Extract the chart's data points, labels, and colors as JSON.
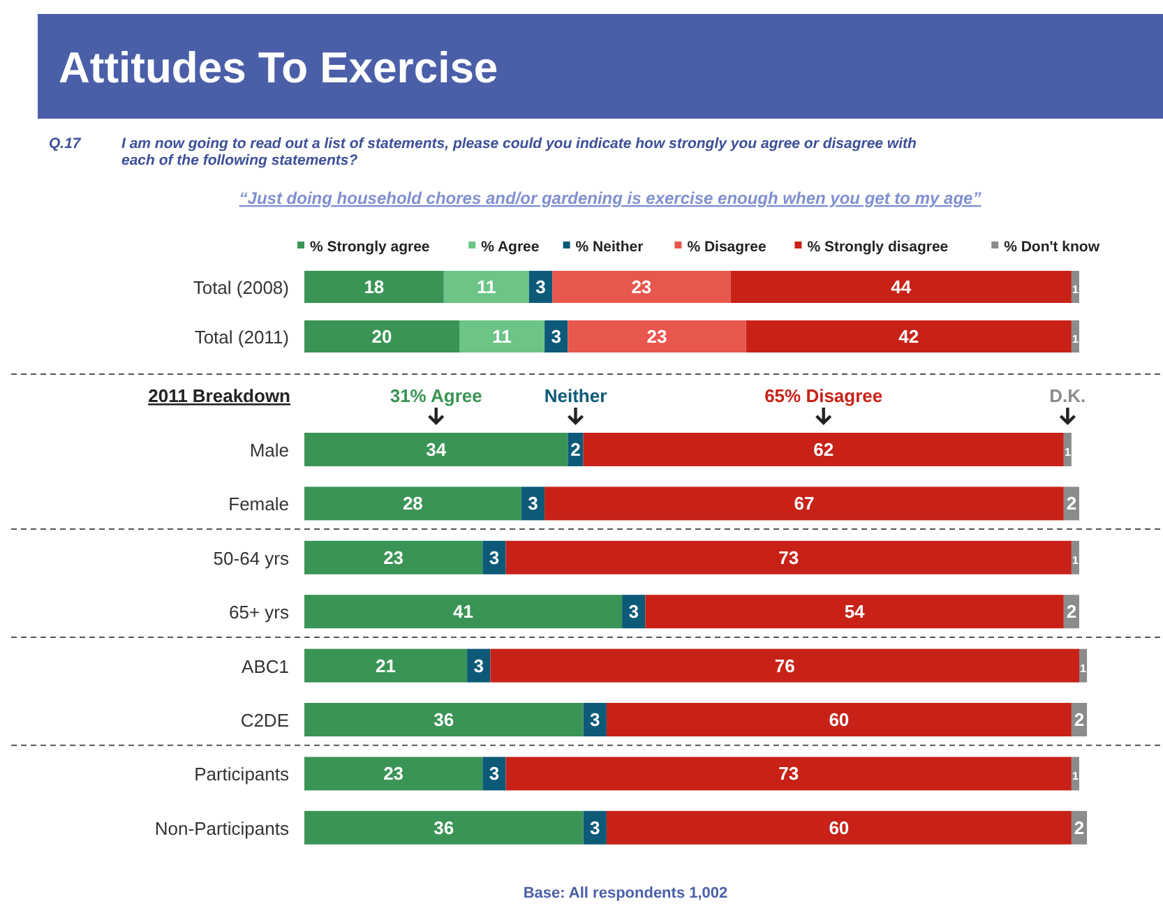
{
  "chart_data": [
    {
      "type": "bar",
      "orientation": "horizontal",
      "stacked": true,
      "title": "Attitudes To Exercise",
      "subtitle": "I am now going to read out a list of statements, please could you indicate how strongly you agree or disagree with each of the following statements?",
      "annotations": [
        "Q.17",
        "“Just doing household chores and/or gardening is exercise enough when you get to my age”"
      ],
      "categories": [
        "Total (2008)",
        "Total (2011)"
      ],
      "tick_labels": "y",
      "data_labels": true,
      "legend": "top",
      "series": [
        {
          "name": "% Strongly agree",
          "color": "#3a9455",
          "values": [
            18,
            20
          ]
        },
        {
          "name": "% Agree",
          "color": "#6cc486",
          "values": [
            11,
            11
          ]
        },
        {
          "name": "% Neither",
          "color": "#0d5a78",
          "values": [
            3,
            3
          ]
        },
        {
          "name": "% Disagree",
          "color": "#e8574e",
          "values": [
            23,
            23
          ]
        },
        {
          "name": "% Strongly disagree",
          "color": "#c82218",
          "values": [
            44,
            42
          ]
        },
        {
          "name": "% Don't know",
          "color": "#8c8c8c",
          "values": [
            1,
            1
          ]
        }
      ]
    },
    {
      "type": "bar",
      "orientation": "horizontal",
      "stacked": true,
      "ylabel": "2011 Breakdown",
      "annotations": [
        "Base:  All respondents 1,002"
      ],
      "categories": [
        "Male",
        "Female",
        "50-64 yrs",
        "65+ yrs",
        "ABC1",
        "C2DE",
        "Participants",
        "Non-Participants"
      ],
      "tick_labels": "y",
      "data_labels": true,
      "legend": "top",
      "series": [
        {
          "name": "31% Agree",
          "color": "#3a9455",
          "values": [
            34,
            28,
            23,
            41,
            21,
            36,
            23,
            36
          ]
        },
        {
          "name": "Neither",
          "color": "#0d5a78",
          "values": [
            2,
            3,
            3,
            3,
            3,
            3,
            3,
            3
          ]
        },
        {
          "name": "65% Disagree",
          "color": "#c82218",
          "values": [
            62,
            67,
            73,
            54,
            76,
            60,
            73,
            60
          ]
        },
        {
          "name": "D.K.",
          "color": "#8c8c8c",
          "values": [
            1,
            2,
            1,
            2,
            1,
            2,
            1,
            2
          ]
        }
      ]
    }
  ]
}
